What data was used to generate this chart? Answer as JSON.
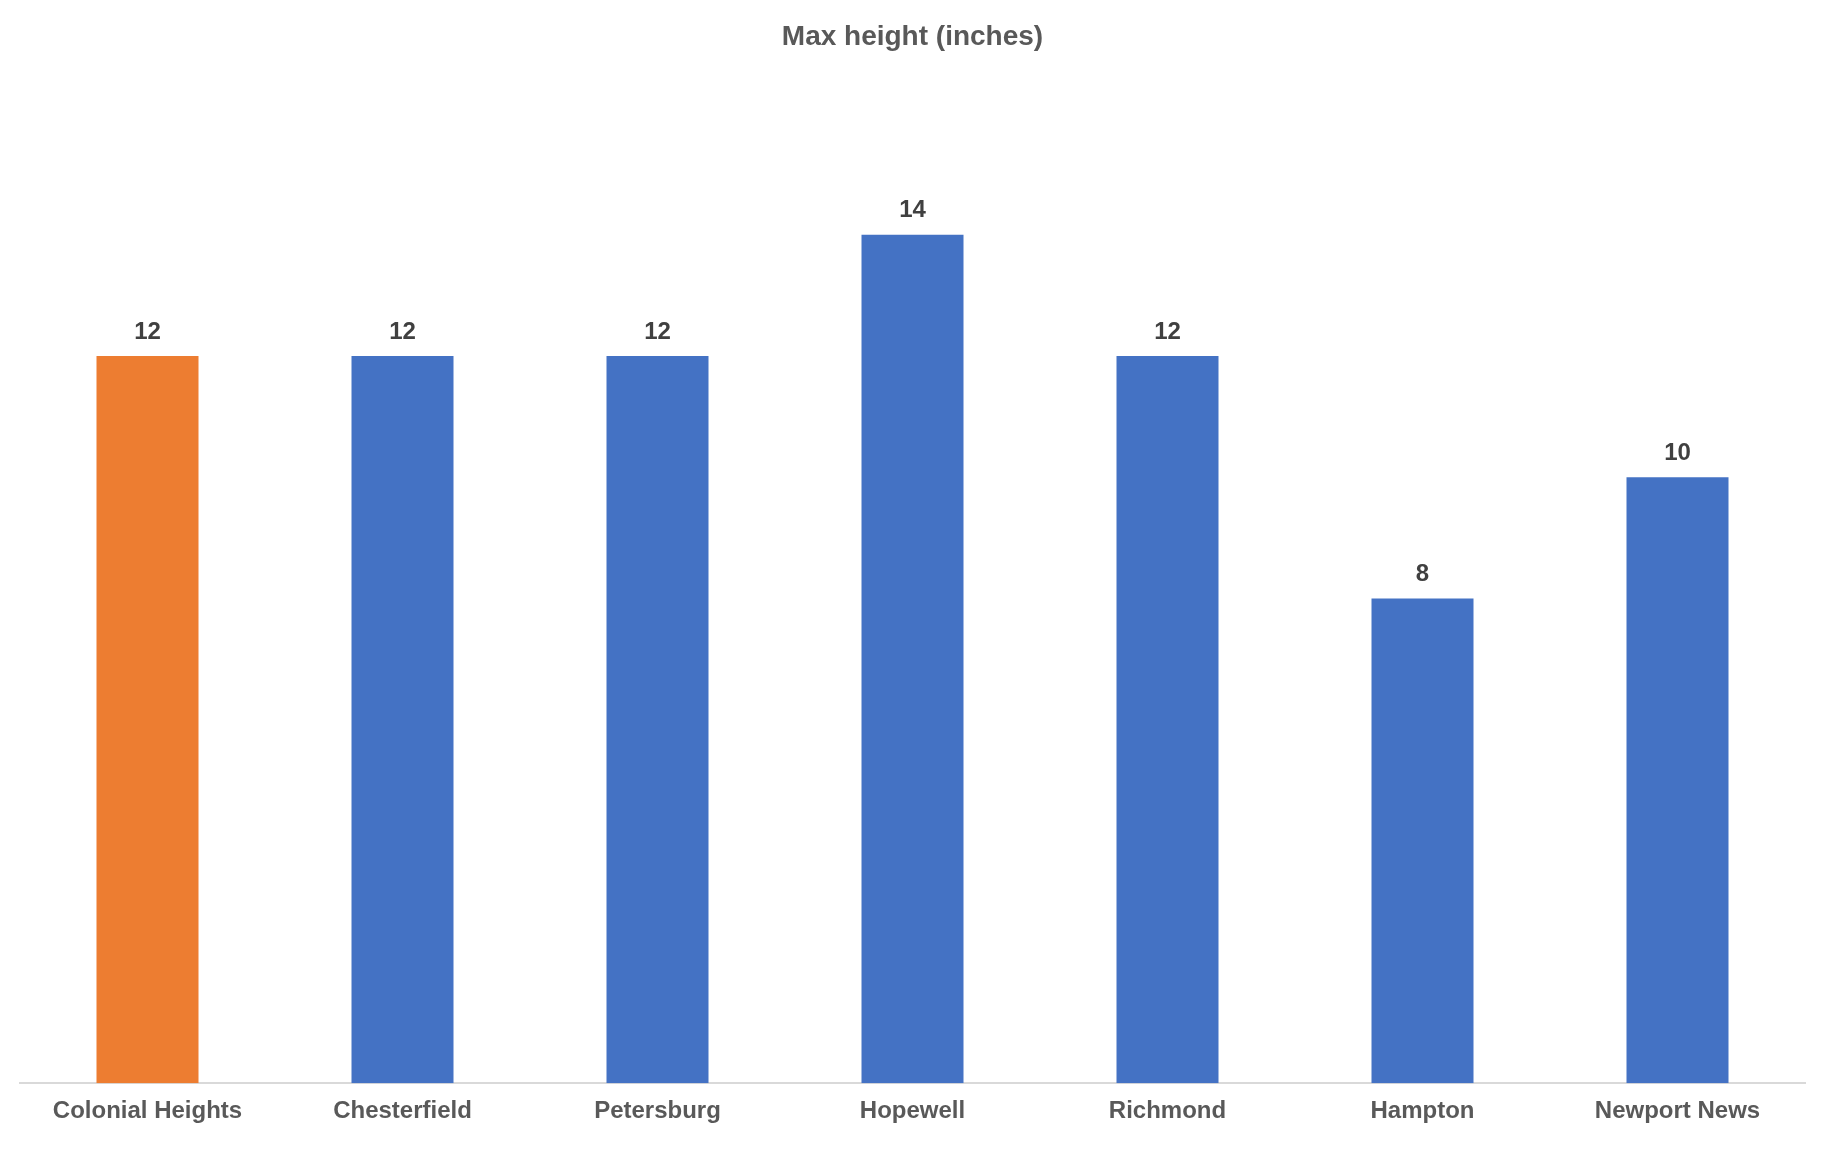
{
  "chart_data": {
    "type": "bar",
    "title": "Max height (inches)",
    "categories": [
      "Colonial Heights",
      "Chesterfield",
      "Petersburg",
      "Hopewell",
      "Richmond",
      "Hampton",
      "Newport News"
    ],
    "values": [
      12,
      12,
      12,
      14,
      12,
      8,
      10
    ],
    "colors": [
      "#ed7d31",
      "#4472c4",
      "#4472c4",
      "#4472c4",
      "#4472c4",
      "#4472c4",
      "#4472c4"
    ],
    "data_labels": true,
    "grid": false,
    "legend": false
  }
}
